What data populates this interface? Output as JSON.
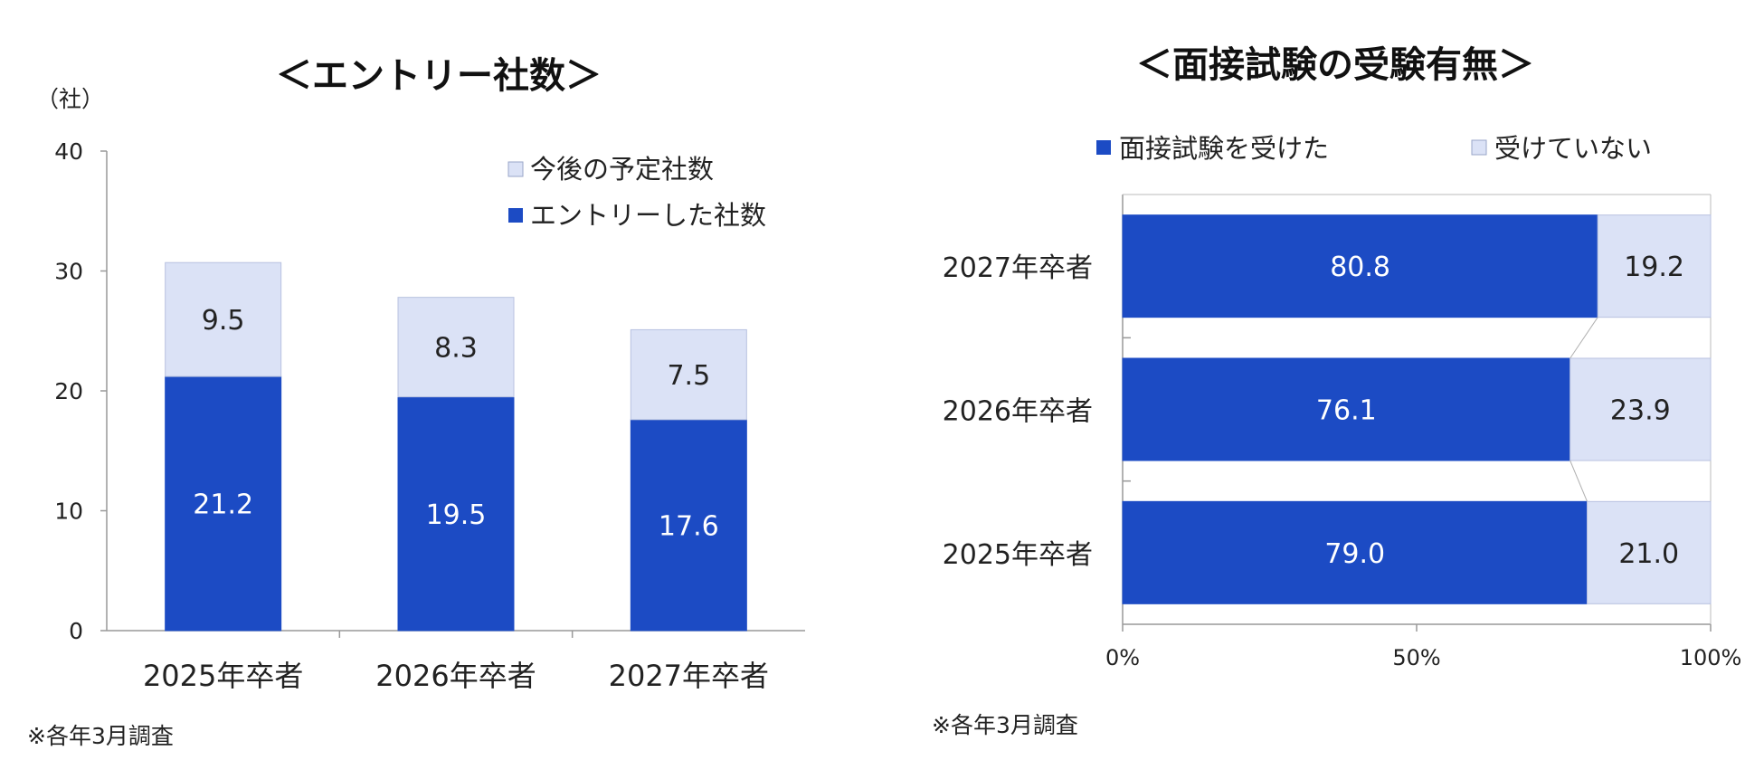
{
  "chart_data": [
    {
      "type": "bar",
      "stacked": true,
      "title": "＜エントリー社数＞",
      "unit_label": "（社）",
      "categories": [
        "2025年卒者",
        "2026年卒者",
        "2027年卒者"
      ],
      "series": [
        {
          "name": "エントリーした社数",
          "values": [
            21.2,
            19.5,
            17.6
          ],
          "color": "#1c4bc4"
        },
        {
          "name": "今後の予定社数",
          "values": [
            9.5,
            8.3,
            7.5
          ],
          "color": "#dbe2f6"
        }
      ],
      "ylim": [
        0,
        40
      ],
      "yticks": [
        "0",
        "10",
        "20",
        "30",
        "40"
      ],
      "legend_position": "top-right",
      "note": "※各年3月調査"
    },
    {
      "type": "bar",
      "orientation": "horizontal",
      "stacked_percent": true,
      "title": "＜面接試験の受験有無＞",
      "categories": [
        "2027年卒者",
        "2026年卒者",
        "2025年卒者"
      ],
      "series": [
        {
          "name": "面接試験を受けた",
          "values": [
            80.8,
            76.1,
            79.0
          ],
          "labels": [
            "80.8",
            "76.1",
            "79.0"
          ],
          "color": "#1c4bc4"
        },
        {
          "name": "受けていない",
          "values": [
            19.2,
            23.9,
            21.0
          ],
          "labels": [
            "19.2",
            "23.9",
            "21.0"
          ],
          "color": "#dbe2f6"
        }
      ],
      "xlim": [
        0,
        100
      ],
      "xticks": [
        "0%",
        "50%",
        "100%"
      ],
      "legend_position": "top",
      "note": "※各年3月調査"
    }
  ]
}
